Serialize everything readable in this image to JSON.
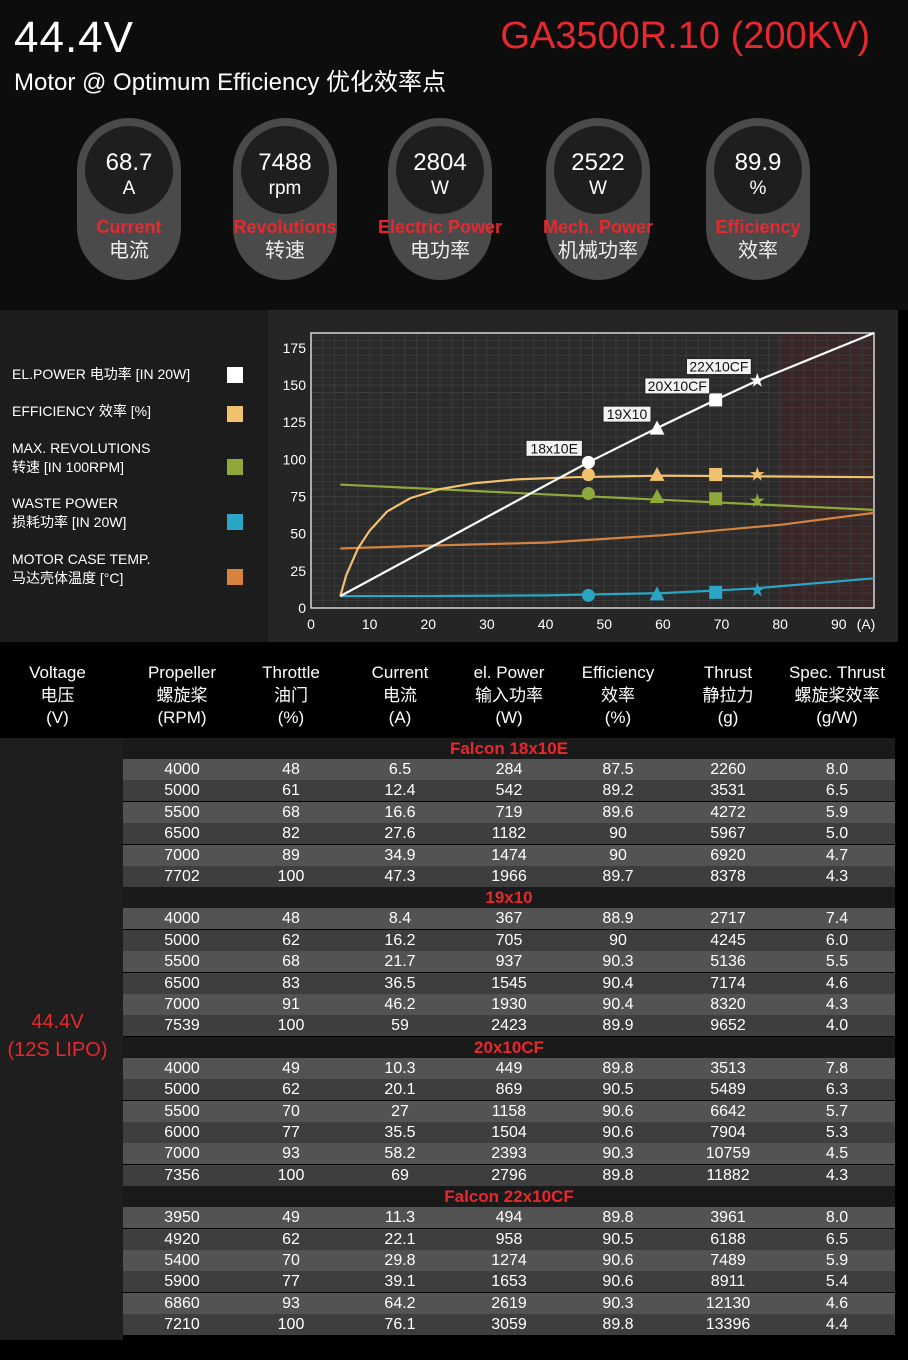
{
  "header": {
    "voltage": "44.4V",
    "subtitle": "Motor @ Optimum Efficiency  优化效率点",
    "model": "GA3500R.10 (200KV)"
  },
  "gauges": [
    {
      "value": "68.7",
      "unit": "A",
      "label_en": "Current",
      "label_cn": "电流"
    },
    {
      "value": "7488",
      "unit": "rpm",
      "label_en": "Revolutions",
      "label_cn": "转速"
    },
    {
      "value": "2804",
      "unit": "W",
      "label_en": "Electric Power",
      "label_cn": "电功率"
    },
    {
      "value": "2522",
      "unit": "W",
      "label_en": "Mech. Power",
      "label_cn": "机械功率"
    },
    {
      "value": "89.9",
      "unit": "%",
      "label_en": "Efficiency",
      "label_cn": "效率"
    }
  ],
  "legend": [
    {
      "line1": "EL.POWER 电功率 [IN 20W]",
      "line2": "",
      "color": "#ffffff"
    },
    {
      "line1": "EFFICIENCY 效率 [%]",
      "line2": "",
      "color": "#f2c170"
    },
    {
      "line1": "MAX. REVOLUTIONS",
      "line2": "转速 [IN 100RPM]",
      "color": "#8fa83a"
    },
    {
      "line1": "WASTE POWER",
      "line2": "损耗功率 [IN 20W]",
      "color": "#2aa6c4"
    },
    {
      "line1": "MOTOR CASE TEMP.",
      "line2": "马达壳体温度 [°C]",
      "color": "#d4843e"
    }
  ],
  "chart_data": {
    "type": "line",
    "xlabel": "(A)",
    "xlim": [
      0,
      96
    ],
    "ylim": [
      0,
      185
    ],
    "xticks": [
      0,
      10,
      20,
      30,
      40,
      50,
      60,
      70,
      80,
      90
    ],
    "yticks": [
      0,
      25,
      50,
      75,
      100,
      125,
      150,
      175
    ],
    "shaded_region": [
      80,
      96
    ],
    "series": [
      {
        "name": "EL.POWER 电功率 [IN 20W]",
        "color": "#ffffff",
        "x": [
          5,
          47.3,
          59,
          69,
          76.1,
          96
        ],
        "y": [
          8,
          98,
          121,
          140,
          153,
          185
        ]
      },
      {
        "name": "EFFICIENCY 效率 [%]",
        "color": "#f2c170",
        "x": [
          5,
          6,
          8,
          10,
          13,
          17,
          22,
          28,
          35,
          45,
          60,
          96
        ],
        "y": [
          8,
          22,
          40,
          52,
          65,
          74,
          80,
          84,
          86.5,
          88,
          89,
          88
        ]
      },
      {
        "name": "MAX. REVOLUTIONS 转速 [IN 100RPM]",
        "color": "#8fa83a",
        "x": [
          5,
          96
        ],
        "y": [
          83,
          66
        ]
      },
      {
        "name": "WASTE POWER 损耗功率 [IN 20W]",
        "color": "#2aa6c4",
        "x": [
          5,
          20,
          40,
          60,
          75,
          96
        ],
        "y": [
          8,
          8,
          8.5,
          10,
          13,
          20
        ]
      },
      {
        "name": "MOTOR CASE TEMP. 马达壳体温度 [°C]",
        "color": "#d4843e",
        "x": [
          5,
          20,
          40,
          60,
          80,
          96
        ],
        "y": [
          40,
          42,
          44,
          49,
          56,
          64
        ]
      }
    ],
    "markers": [
      {
        "label": "18x10E",
        "shape": "circle",
        "x": 47.3,
        "el_power": 98,
        "efficiency": 89.7,
        "revolutions": 77,
        "waste": 8.5
      },
      {
        "label": "19X10",
        "shape": "triangle",
        "x": 59,
        "el_power": 121,
        "efficiency": 89.9,
        "revolutions": 75,
        "waste": 9.5
      },
      {
        "label": "20X10CF",
        "shape": "square",
        "x": 69,
        "el_power": 140,
        "efficiency": 89.8,
        "revolutions": 73.5,
        "waste": 10.5
      },
      {
        "label": "22X10CF",
        "shape": "star",
        "x": 76.1,
        "el_power": 153,
        "efficiency": 89.8,
        "revolutions": 72,
        "waste": 12
      }
    ]
  },
  "table": {
    "headers": [
      [
        "Voltage",
        "电压",
        "(V)"
      ],
      [
        "Propeller",
        "螺旋桨",
        "(RPM)"
      ],
      [
        "Throttle",
        "油门",
        "(%)"
      ],
      [
        "Current",
        "电流",
        "(A)"
      ],
      [
        "el. Power",
        "输入功率",
        "(W)"
      ],
      [
        "Efficiency",
        "效率",
        "(%)"
      ],
      [
        "Thrust",
        "静拉力",
        "(g)"
      ],
      [
        "Spec. Thrust",
        "螺旋桨效率",
        "(g/W)"
      ]
    ],
    "voltage_label": [
      "44.4V",
      "(12S LIPO)"
    ],
    "groups": [
      {
        "name": "Falcon 18x10E",
        "rows": [
          [
            "4000",
            "48",
            "6.5",
            "284",
            "87.5",
            "2260",
            "8.0"
          ],
          [
            "5000",
            "61",
            "12.4",
            "542",
            "89.2",
            "3531",
            "6.5"
          ],
          [
            "5500",
            "68",
            "16.6",
            "719",
            "89.6",
            "4272",
            "5.9"
          ],
          [
            "6500",
            "82",
            "27.6",
            "1182",
            "90",
            "5967",
            "5.0"
          ],
          [
            "7000",
            "89",
            "34.9",
            "1474",
            "90",
            "6920",
            "4.7"
          ],
          [
            "7702",
            "100",
            "47.3",
            "1966",
            "89.7",
            "8378",
            "4.3"
          ]
        ]
      },
      {
        "name": "19x10",
        "rows": [
          [
            "4000",
            "48",
            "8.4",
            "367",
            "88.9",
            "2717",
            "7.4"
          ],
          [
            "5000",
            "62",
            "16.2",
            "705",
            "90",
            "4245",
            "6.0"
          ],
          [
            "5500",
            "68",
            "21.7",
            "937",
            "90.3",
            "5136",
            "5.5"
          ],
          [
            "6500",
            "83",
            "36.5",
            "1545",
            "90.4",
            "7174",
            "4.6"
          ],
          [
            "7000",
            "91",
            "46.2",
            "1930",
            "90.4",
            "8320",
            "4.3"
          ],
          [
            "7539",
            "100",
            "59",
            "2423",
            "89.9",
            "9652",
            "4.0"
          ]
        ]
      },
      {
        "name": "20x10CF",
        "rows": [
          [
            "4000",
            "49",
            "10.3",
            "449",
            "89.8",
            "3513",
            "7.8"
          ],
          [
            "5000",
            "62",
            "20.1",
            "869",
            "90.5",
            "5489",
            "6.3"
          ],
          [
            "5500",
            "70",
            "27",
            "1158",
            "90.6",
            "6642",
            "5.7"
          ],
          [
            "6000",
            "77",
            "35.5",
            "1504",
            "90.6",
            "7904",
            "5.3"
          ],
          [
            "7000",
            "93",
            "58.2",
            "2393",
            "90.3",
            "10759",
            "4.5"
          ],
          [
            "7356",
            "100",
            "69",
            "2796",
            "89.8",
            "11882",
            "4.3"
          ]
        ]
      },
      {
        "name": "Falcon 22x10CF",
        "rows": [
          [
            "3950",
            "49",
            "11.3",
            "494",
            "89.8",
            "3961",
            "8.0"
          ],
          [
            "4920",
            "62",
            "22.1",
            "958",
            "90.5",
            "6188",
            "6.5"
          ],
          [
            "5400",
            "70",
            "29.8",
            "1274",
            "90.6",
            "7489",
            "5.9"
          ],
          [
            "5900",
            "77",
            "39.1",
            "1653",
            "90.6",
            "8911",
            "5.4"
          ],
          [
            "6860",
            "93",
            "64.2",
            "2619",
            "90.3",
            "12130",
            "4.6"
          ],
          [
            "7210",
            "100",
            "76.1",
            "3059",
            "89.8",
            "13396",
            "4.4"
          ]
        ]
      }
    ]
  }
}
